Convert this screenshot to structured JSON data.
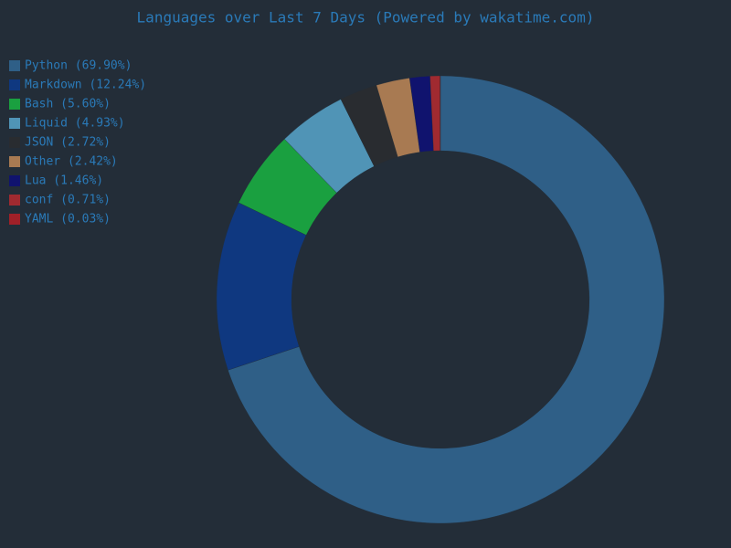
{
  "chart_data": {
    "type": "donut",
    "title": "Languages over Last 7 Days (Powered by wakatime.com)",
    "categories": [
      "Python (69.90%)",
      "Markdown (12.24%)",
      "Bash (5.60%)",
      "Liquid (4.93%)",
      "JSON (2.72%)",
      "Other (2.42%)",
      "Lua (1.46%)",
      "conf (0.71%)",
      "YAML (0.03%)"
    ],
    "values": [
      69.9,
      12.24,
      5.6,
      4.93,
      2.72,
      2.42,
      1.46,
      0.71,
      0.03
    ],
    "colors": [
      "#2f5f87",
      "#0f3880",
      "#1aa040",
      "#5094b6",
      "#292c30",
      "#a87a52",
      "#10136e",
      "#a02a30",
      "#a02028"
    ],
    "legend": "top-left"
  }
}
